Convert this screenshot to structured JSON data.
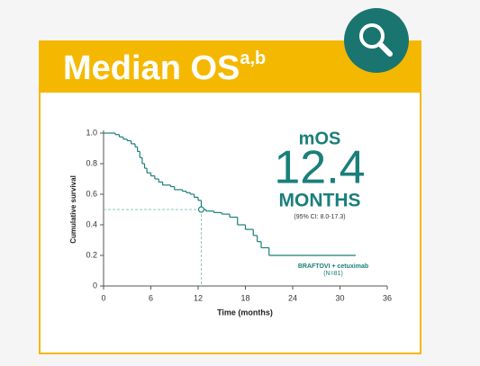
{
  "chart_data": {
    "type": "step",
    "title": "Median OS",
    "title_superscript": "a,b",
    "x_label": "Time (months)",
    "y_label": "Cumulative survival",
    "xlim": [
      0,
      36
    ],
    "xticks": [
      0,
      6,
      12,
      18,
      24,
      30,
      36
    ],
    "ylim": [
      0,
      1
    ],
    "yticks": [
      0,
      0.2,
      0.4,
      0.6,
      0.8,
      {
        "value": 1,
        "label": "1.0"
      }
    ],
    "color": "#1a7f7a",
    "series": [
      {
        "name": "BRAFTOVI + cetuximab",
        "note": "(N=81)",
        "x": [
          0,
          1.5,
          2,
          2.5,
          3,
          3.5,
          4,
          4.3,
          4.6,
          4.9,
          5.2,
          5.5,
          6,
          6.5,
          7,
          7.5,
          8.5,
          9,
          10,
          10.5,
          11,
          11.5,
          12,
          12.4,
          13,
          14,
          15,
          16,
          17,
          18,
          19,
          19.5,
          20,
          21,
          32
        ],
        "values": [
          1,
          0.99,
          0.975,
          0.96,
          0.95,
          0.93,
          0.91,
          0.88,
          0.84,
          0.8,
          0.77,
          0.74,
          0.72,
          0.7,
          0.68,
          0.66,
          0.65,
          0.63,
          0.62,
          0.61,
          0.6,
          0.58,
          0.56,
          0.5,
          0.49,
          0.48,
          0.47,
          0.45,
          0.4,
          0.37,
          0.33,
          0.29,
          0.25,
          0.2,
          0.2
        ]
      }
    ],
    "median": {
      "label": "mOS",
      "x": 12.4,
      "y": 0.5,
      "unit": "MONTHS",
      "ci": "(95% CI: 8.0-17.3)"
    }
  }
}
